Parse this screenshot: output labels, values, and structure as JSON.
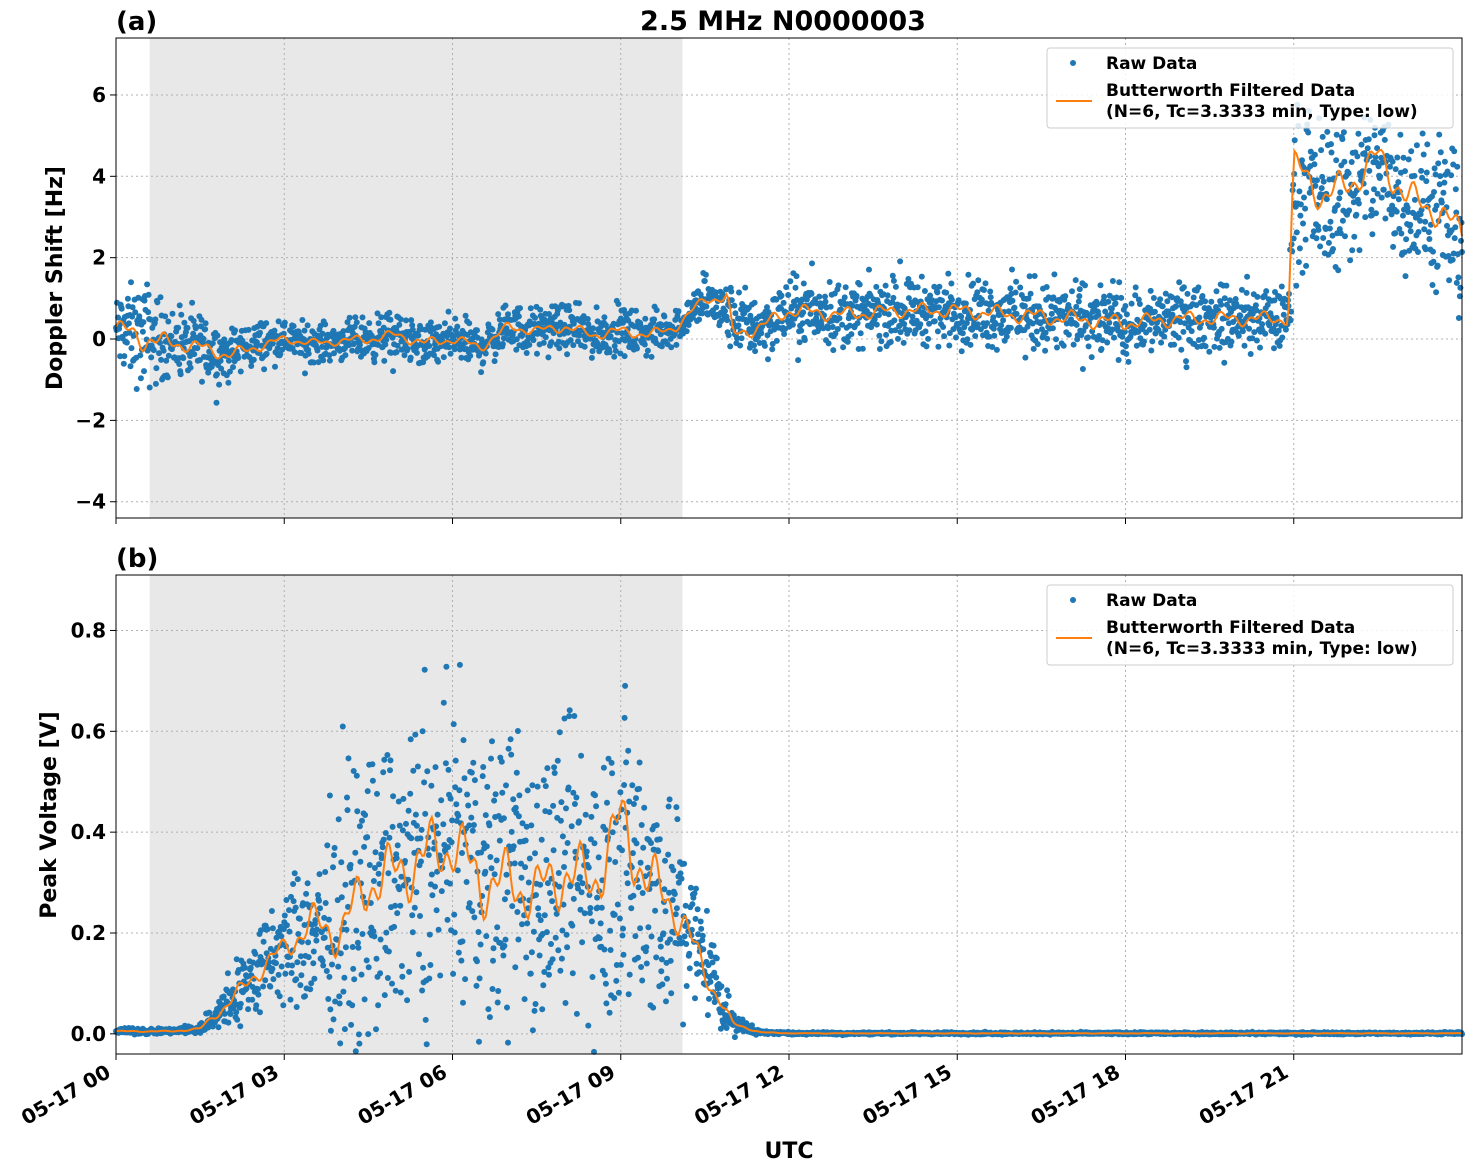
{
  "figure": {
    "title": "2.5 MHz N0000003",
    "xlabel": "UTC",
    "x_ticks": [
      "05-17 00",
      "05-17 03",
      "05-17 06",
      "05-17 09",
      "05-17 12",
      "05-17 15",
      "05-17 18",
      "05-17 21"
    ],
    "x_range_hours": [
      0,
      24
    ],
    "shaded_interval_hours": [
      0.6,
      10.1
    ],
    "colors": {
      "raw": "#1f77b4",
      "filtered": "#ff7f0e",
      "shade": "#e8e8e8",
      "grid": "#b0b0b0"
    },
    "legend": {
      "raw": "Raw Data",
      "filtered_line1": "Butterworth Filtered Data",
      "filtered_line2": "(N=6, Tc=3.3333 min, Type: low)",
      "placement": "top-right"
    }
  },
  "chart_data": [
    {
      "panel_label": "(a)",
      "type": "scatter",
      "ylabel": "Doppler Shift [Hz]",
      "ylim": [
        -4.4,
        7.4
      ],
      "yticks": [
        "−4",
        "−2",
        "0",
        "2",
        "4",
        "6"
      ],
      "ytick_values": [
        -4,
        -2,
        0,
        2,
        4,
        6
      ],
      "series": [
        {
          "name": "Raw Data",
          "x": [
            0.0,
            0.5,
            1.0,
            1.5,
            2.0,
            2.5,
            3.0,
            3.5,
            4.0,
            4.5,
            5.0,
            5.5,
            6.0,
            6.5,
            7.0,
            7.5,
            8.0,
            8.5,
            9.0,
            9.5,
            10.0,
            10.5,
            11.0,
            11.5,
            12.0,
            13.0,
            14.0,
            15.0,
            16.0,
            17.0,
            18.0,
            19.0,
            20.0,
            20.9,
            21.0,
            21.5,
            22.0,
            22.5,
            23.0,
            23.5,
            24.0
          ],
          "y": [
            0.2,
            0.1,
            -0.1,
            -0.2,
            -0.4,
            -0.1,
            0.0,
            -0.1,
            -0.05,
            0.0,
            0.1,
            -0.2,
            0.0,
            -0.2,
            0.3,
            0.2,
            0.3,
            0.1,
            0.2,
            0.1,
            0.3,
            1.0,
            0.5,
            0.3,
            0.7,
            0.6,
            0.7,
            0.7,
            0.6,
            0.5,
            0.4,
            0.5,
            0.5,
            0.5,
            3.8,
            3.5,
            3.6,
            4.2,
            3.5,
            3.0,
            2.5
          ],
          "spread": [
            0.8,
            1.2,
            0.7,
            0.7,
            0.6,
            0.5,
            0.4,
            0.4,
            0.4,
            0.5,
            0.5,
            0.5,
            0.5,
            0.5,
            0.5,
            0.5,
            0.5,
            0.5,
            0.5,
            0.5,
            0.4,
            0.5,
            0.7,
            0.7,
            0.7,
            0.7,
            0.7,
            0.7,
            0.8,
            0.8,
            0.8,
            0.7,
            0.7,
            0.7,
            1.6,
            1.6,
            1.6,
            1.6,
            1.6,
            1.6,
            1.6
          ]
        },
        {
          "name": "Butterworth Filtered Data",
          "x": [
            0.0,
            0.5,
            1.0,
            1.5,
            2.0,
            2.5,
            3.0,
            3.5,
            4.0,
            4.5,
            5.0,
            5.5,
            6.0,
            6.5,
            7.0,
            7.5,
            8.0,
            8.5,
            9.0,
            9.5,
            10.0,
            10.5,
            10.9,
            11.0,
            11.5,
            12.0,
            13.0,
            14.0,
            15.0,
            16.0,
            17.0,
            18.0,
            19.0,
            20.0,
            20.9,
            21.0,
            21.5,
            22.0,
            22.5,
            23.0,
            23.5,
            24.0
          ],
          "y": [
            0.3,
            0.0,
            -0.1,
            -0.2,
            -0.4,
            -0.2,
            0.0,
            -0.1,
            -0.05,
            0.0,
            0.1,
            -0.1,
            0.0,
            -0.2,
            0.3,
            0.2,
            0.3,
            0.1,
            0.2,
            0.1,
            0.3,
            1.0,
            1.0,
            0.1,
            0.3,
            0.7,
            0.6,
            0.7,
            0.7,
            0.6,
            0.5,
            0.4,
            0.5,
            0.5,
            0.5,
            4.3,
            3.5,
            3.8,
            4.5,
            3.5,
            3.2,
            2.6
          ]
        }
      ]
    },
    {
      "panel_label": "(b)",
      "type": "scatter",
      "ylabel": "Peak Voltage [V]",
      "ylim": [
        -0.04,
        0.91
      ],
      "yticks": [
        "0.0",
        "0.2",
        "0.4",
        "0.6",
        "0.8"
      ],
      "ytick_values": [
        0,
        0.2,
        0.4,
        0.6,
        0.8
      ],
      "series": [
        {
          "name": "Raw Data",
          "x": [
            0.0,
            0.5,
            1.0,
            1.5,
            2.0,
            2.5,
            3.0,
            3.5,
            4.0,
            4.5,
            5.0,
            5.5,
            6.0,
            6.5,
            7.0,
            7.5,
            8.0,
            8.5,
            9.0,
            9.5,
            10.0,
            10.5,
            11.0,
            11.5,
            12.0,
            24.0
          ],
          "y": [
            0.005,
            0.005,
            0.005,
            0.01,
            0.06,
            0.12,
            0.17,
            0.2,
            0.22,
            0.27,
            0.3,
            0.32,
            0.34,
            0.3,
            0.32,
            0.3,
            0.32,
            0.3,
            0.35,
            0.3,
            0.25,
            0.15,
            0.02,
            0.003,
            0.001,
            0.001
          ],
          "spread": [
            0.005,
            0.005,
            0.005,
            0.01,
            0.05,
            0.08,
            0.1,
            0.15,
            0.2,
            0.24,
            0.26,
            0.28,
            0.28,
            0.27,
            0.26,
            0.25,
            0.26,
            0.26,
            0.3,
            0.26,
            0.2,
            0.1,
            0.02,
            0.003,
            0.002,
            0.002
          ]
        },
        {
          "name": "Butterworth Filtered Data",
          "x": [
            0.0,
            0.5,
            1.0,
            1.5,
            2.0,
            2.5,
            3.0,
            3.5,
            4.0,
            4.5,
            5.0,
            5.5,
            6.0,
            6.5,
            7.0,
            7.5,
            8.0,
            8.5,
            9.0,
            9.5,
            10.0,
            10.5,
            11.0,
            11.5,
            12.0,
            24.0
          ],
          "y": [
            0.005,
            0.005,
            0.005,
            0.01,
            0.06,
            0.12,
            0.17,
            0.22,
            0.2,
            0.3,
            0.32,
            0.35,
            0.38,
            0.3,
            0.3,
            0.28,
            0.32,
            0.3,
            0.42,
            0.3,
            0.25,
            0.12,
            0.02,
            0.003,
            0.001,
            0.001
          ]
        }
      ]
    }
  ]
}
